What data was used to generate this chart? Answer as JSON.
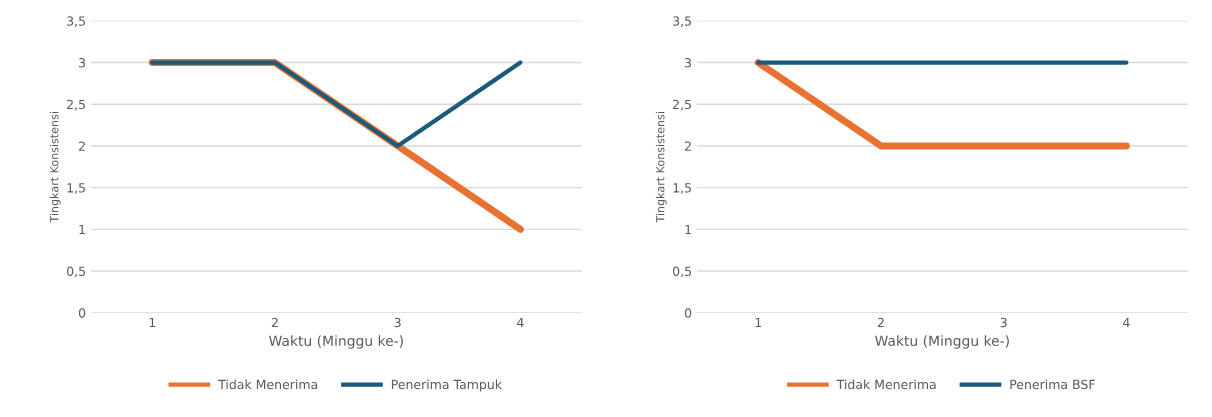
{
  "chart_data": [
    {
      "type": "line",
      "categories": [
        "1",
        "2",
        "3",
        "4"
      ],
      "xlabel": "Waktu (Minggu ke-)",
      "ylabel": "Tingkart Konsistensi",
      "ylim": [
        0,
        3.5
      ],
      "yticks": [
        0,
        {
          "value": 0.5,
          "label": "0,5"
        },
        1,
        {
          "value": 1.5,
          "label": "1,5"
        },
        2,
        {
          "value": 2.5,
          "label": "2,5"
        },
        3,
        {
          "value": 3.5,
          "label": "3,5"
        }
      ],
      "grid": "y",
      "legend": "bottom",
      "marker": "none",
      "line_style": "solid",
      "series": [
        {
          "name": "Tidak Menerima",
          "color": "#e97132",
          "values": [
            3,
            3,
            2,
            1
          ]
        },
        {
          "name": "Penerima Tampuk",
          "color": "#1a5a7a",
          "values": [
            3,
            3,
            2,
            3
          ]
        }
      ]
    },
    {
      "type": "line",
      "categories": [
        "1",
        "2",
        "3",
        "4"
      ],
      "xlabel": "Waktu (Minggu ke-)",
      "ylabel": "Tingkart Konsistensi",
      "ylim": [
        0,
        3.5
      ],
      "yticks": [
        0,
        {
          "value": 0.5,
          "label": "0,5"
        },
        1,
        {
          "value": 1.5,
          "label": "1,5"
        },
        2,
        {
          "value": 2.5,
          "label": "2,5"
        },
        3,
        {
          "value": 3.5,
          "label": "3,5"
        }
      ],
      "grid": "y",
      "legend": "bottom",
      "marker": "none",
      "line_style": "solid",
      "series": [
        {
          "name": "Tidak Menerima",
          "color": "#e97132",
          "values": [
            3,
            2,
            2,
            2
          ]
        },
        {
          "name": "Penerima BSF",
          "color": "#1a5a7a",
          "values": [
            3,
            3,
            3,
            3
          ]
        }
      ]
    }
  ]
}
